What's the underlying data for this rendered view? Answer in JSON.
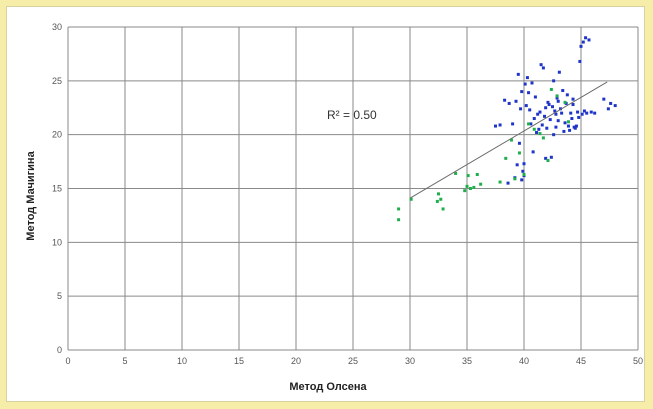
{
  "chart_data": {
    "type": "scatter",
    "title": "",
    "xlabel": "Метод Олсена",
    "ylabel": "Метод Мачигина",
    "xlim": [
      0,
      50
    ],
    "ylim": [
      0,
      30
    ],
    "xticks": [
      "0",
      "5",
      "10",
      "15",
      "20",
      "25",
      "30",
      "35",
      "40",
      "45",
      "50"
    ],
    "yticks": [
      "0",
      "5",
      "10",
      "15",
      "20",
      "25",
      "30"
    ],
    "grid": true,
    "legend": "none",
    "annotation": "R² = 0.50",
    "trendline": {
      "x": [
        30,
        47.3
      ],
      "y": [
        14.1,
        24.9
      ]
    },
    "series": [
      {
        "color": "#1f35c9",
        "points": [
          [
            37.5,
            20.8
          ],
          [
            37.9,
            20.9
          ],
          [
            38.3,
            23.2
          ],
          [
            38.7,
            22.9
          ],
          [
            39.0,
            21.0
          ],
          [
            39.3,
            23.1
          ],
          [
            39.5,
            25.6
          ],
          [
            39.6,
            19.2
          ],
          [
            39.7,
            22.4
          ],
          [
            39.8,
            24.0
          ],
          [
            39.9,
            16.6
          ],
          [
            40.0,
            17.3
          ],
          [
            40.1,
            24.7
          ],
          [
            40.2,
            22.7
          ],
          [
            40.3,
            25.3
          ],
          [
            40.4,
            23.9
          ],
          [
            40.5,
            22.3
          ],
          [
            40.6,
            21.0
          ],
          [
            40.7,
            24.8
          ],
          [
            40.8,
            18.4
          ],
          [
            40.9,
            21.5
          ],
          [
            41.0,
            23.5
          ],
          [
            41.1,
            20.2
          ],
          [
            41.2,
            21.9
          ],
          [
            41.3,
            20.5
          ],
          [
            41.4,
            22.1
          ],
          [
            41.5,
            26.5
          ],
          [
            41.6,
            20.9
          ],
          [
            41.7,
            26.2
          ],
          [
            41.8,
            21.7
          ],
          [
            41.9,
            22.5
          ],
          [
            42.0,
            20.6
          ],
          [
            42.1,
            23.0
          ],
          [
            42.2,
            22.8
          ],
          [
            42.3,
            21.4
          ],
          [
            42.4,
            17.9
          ],
          [
            42.5,
            22.6
          ],
          [
            42.6,
            25.0
          ],
          [
            42.7,
            22.2
          ],
          [
            42.8,
            20.7
          ],
          [
            42.9,
            23.4
          ],
          [
            43.0,
            21.3
          ],
          [
            43.1,
            25.8
          ],
          [
            43.2,
            22.4
          ],
          [
            43.3,
            22.0
          ],
          [
            43.4,
            24.1
          ],
          [
            43.5,
            20.3
          ],
          [
            43.6,
            21.1
          ],
          [
            43.7,
            22.9
          ],
          [
            43.8,
            23.7
          ],
          [
            43.9,
            20.8
          ],
          [
            44.0,
            20.4
          ],
          [
            44.1,
            22.0
          ],
          [
            44.2,
            21.5
          ],
          [
            44.3,
            23.3
          ],
          [
            44.4,
            20.7
          ],
          [
            44.5,
            20.6
          ],
          [
            44.6,
            20.8
          ],
          [
            44.7,
            22.1
          ],
          [
            44.8,
            21.6
          ],
          [
            44.9,
            26.8
          ],
          [
            45.0,
            28.2
          ],
          [
            45.1,
            21.9
          ],
          [
            45.2,
            28.6
          ],
          [
            45.3,
            22.2
          ],
          [
            45.4,
            29.0
          ],
          [
            45.5,
            22.0
          ],
          [
            45.7,
            28.8
          ],
          [
            45.9,
            22.1
          ],
          [
            46.2,
            22.0
          ],
          [
            47.0,
            23.3
          ],
          [
            47.4,
            22.4
          ],
          [
            47.6,
            22.9
          ],
          [
            48.0,
            22.7
          ],
          [
            38.6,
            15.5
          ],
          [
            39.2,
            16.0
          ],
          [
            39.4,
            17.2
          ],
          [
            39.8,
            15.8
          ],
          [
            40.0,
            16.2
          ],
          [
            41.9,
            17.8
          ],
          [
            42.6,
            20.0
          ],
          [
            43.0,
            23.1
          ],
          [
            44.3,
            22.8
          ],
          [
            42.8,
            21.9
          ]
        ]
      },
      {
        "color": "#1fae4c",
        "points": [
          [
            29.0,
            13.1
          ],
          [
            29.0,
            12.1
          ],
          [
            30.1,
            14.0
          ],
          [
            32.4,
            13.8
          ],
          [
            32.5,
            14.5
          ],
          [
            32.7,
            14.0
          ],
          [
            32.9,
            13.1
          ],
          [
            34.0,
            16.4
          ],
          [
            34.8,
            14.8
          ],
          [
            35.0,
            15.2
          ],
          [
            35.1,
            16.2
          ],
          [
            35.3,
            15.0
          ],
          [
            35.6,
            15.1
          ],
          [
            35.9,
            16.3
          ],
          [
            36.2,
            15.4
          ],
          [
            37.9,
            15.6
          ],
          [
            38.4,
            17.8
          ],
          [
            38.9,
            19.5
          ],
          [
            39.2,
            15.9
          ],
          [
            39.6,
            18.3
          ],
          [
            40.0,
            16.3
          ],
          [
            40.4,
            21.0
          ],
          [
            40.9,
            20.5
          ],
          [
            41.4,
            20.1
          ],
          [
            41.7,
            19.7
          ],
          [
            42.1,
            17.6
          ],
          [
            42.4,
            24.2
          ],
          [
            42.9,
            23.6
          ],
          [
            43.6,
            23.0
          ],
          [
            43.9,
            21.2
          ]
        ]
      }
    ]
  }
}
